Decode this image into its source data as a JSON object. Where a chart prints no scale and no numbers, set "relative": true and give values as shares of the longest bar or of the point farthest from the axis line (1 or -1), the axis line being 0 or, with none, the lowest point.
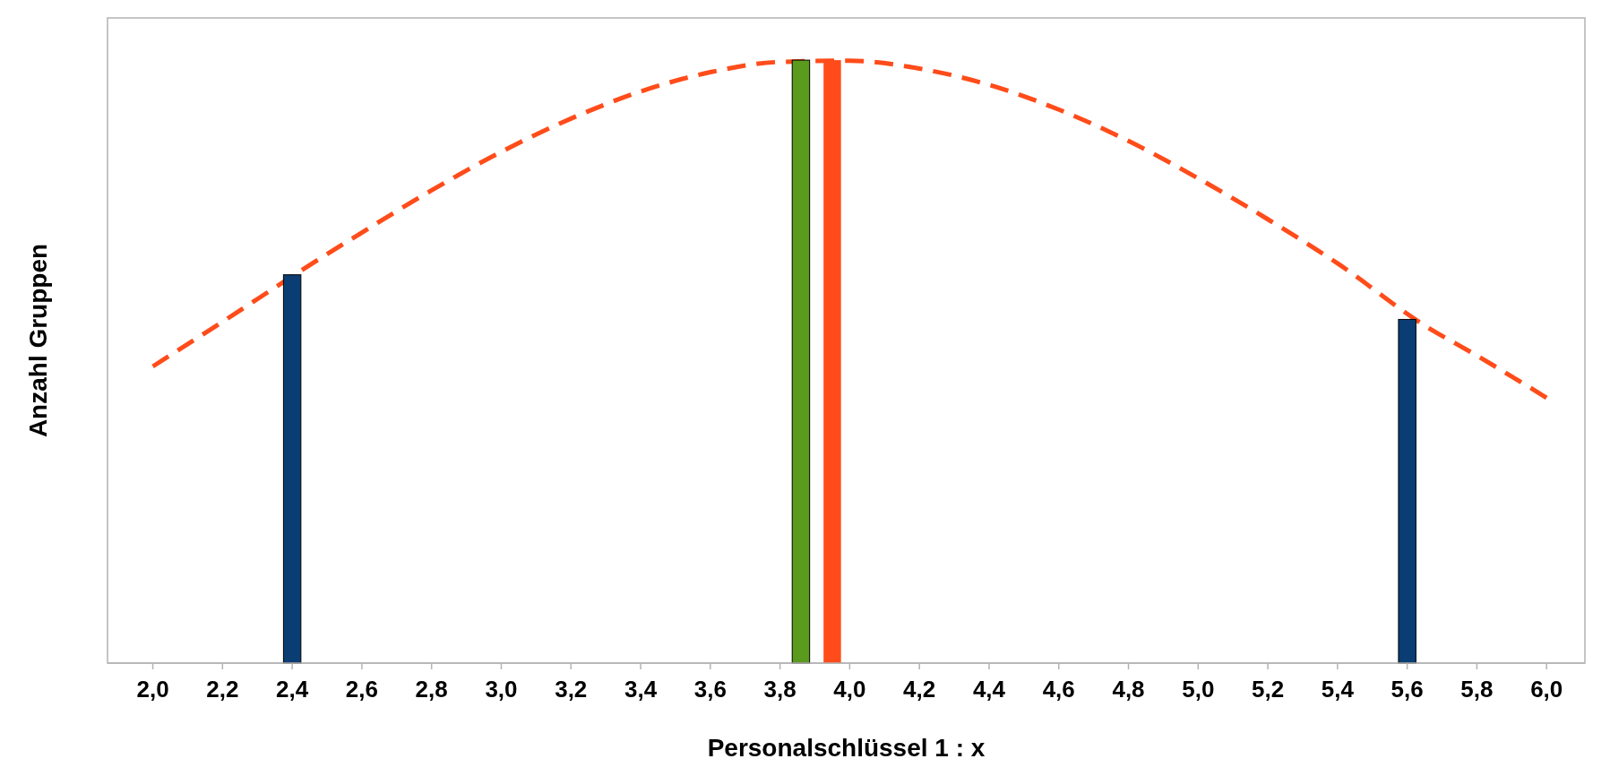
{
  "chart_data": {
    "type": "bar",
    "xlabel": "Personalschlüssel  1 : x",
    "ylabel": "Anzahl Gruppen",
    "relative": true,
    "xlim": [
      1.87,
      6.11
    ],
    "xticks": [
      {
        "value": 2.0,
        "label": "2,0"
      },
      {
        "value": 2.2,
        "label": "2,2"
      },
      {
        "value": 2.4,
        "label": "2,4"
      },
      {
        "value": 2.6,
        "label": "2,6"
      },
      {
        "value": 2.8,
        "label": "2,8"
      },
      {
        "value": 3.0,
        "label": "3,0"
      },
      {
        "value": 3.2,
        "label": "3,2"
      },
      {
        "value": 3.4,
        "label": "3,4"
      },
      {
        "value": 3.6,
        "label": "3,6"
      },
      {
        "value": 3.8,
        "label": "3,8"
      },
      {
        "value": 4.0,
        "label": "4,0"
      },
      {
        "value": 4.2,
        "label": "4,2"
      },
      {
        "value": 4.4,
        "label": "4,4"
      },
      {
        "value": 4.6,
        "label": "4,6"
      },
      {
        "value": 4.8,
        "label": "4,8"
      },
      {
        "value": 5.0,
        "label": "5,0"
      },
      {
        "value": 5.2,
        "label": "5,2"
      },
      {
        "value": 5.4,
        "label": "5,4"
      },
      {
        "value": 5.6,
        "label": "5,6"
      },
      {
        "value": 5.8,
        "label": "5,8"
      },
      {
        "value": 6.0,
        "label": "6,0"
      }
    ],
    "grid": false,
    "series": [
      {
        "color": "#0a3d73",
        "x": [
          2.4,
          5.6
        ],
        "values": [
          0.644,
          0.57
        ]
      },
      {
        "type": "bar",
        "color": "#5a9a1c",
        "x": [
          3.86
        ],
        "values": [
          1.0
        ]
      },
      {
        "type": "bar",
        "color": "#ff4c1a",
        "x": [
          3.95
        ],
        "values": [
          1.0
        ]
      },
      {
        "type": "line",
        "color": "#ff4c1a",
        "line_style": "dashed",
        "marker": "none",
        "x": [
          2.0,
          2.2,
          2.45,
          2.6,
          2.8,
          3.0,
          3.2,
          3.4,
          3.6,
          3.8,
          4.0,
          4.2,
          4.4,
          4.6,
          4.8,
          5.0,
          5.2,
          5.4,
          5.65,
          5.8,
          6.0
        ],
        "values": [
          0.492,
          0.566,
          0.66,
          0.714,
          0.784,
          0.848,
          0.903,
          0.948,
          0.98,
          0.997,
          0.999,
          0.986,
          0.959,
          0.918,
          0.866,
          0.804,
          0.736,
          0.663,
          0.56,
          0.51,
          0.44
        ]
      }
    ]
  }
}
